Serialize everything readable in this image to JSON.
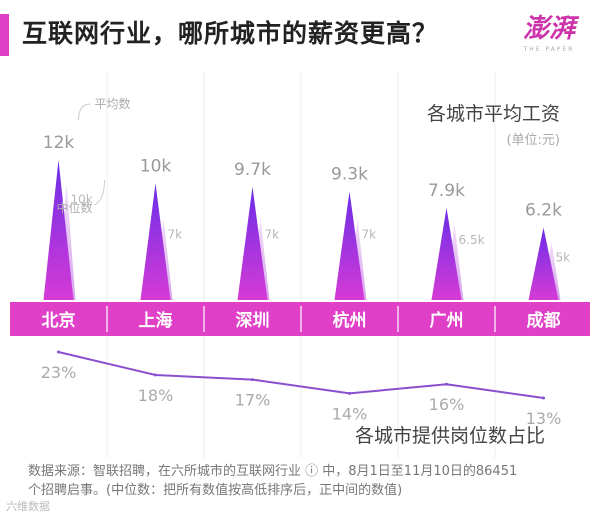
{
  "header": {
    "title": "互联网行业，哪所城市的薪资更高？",
    "logo_text": "澎湃",
    "logo_sub": "THE PAPER",
    "accent_color": "#e040c8"
  },
  "chart_data": [
    {
      "type": "bar",
      "subtype": "triangle-peaks",
      "title": "各城市平均工资",
      "unit_label": "(单位:元)",
      "categories": [
        "北京",
        "上海",
        "深圳",
        "杭州",
        "广州",
        "成都"
      ],
      "series": [
        {
          "name": "平均数",
          "values": [
            12000,
            10000,
            9700,
            9300,
            7900,
            6200
          ],
          "labels": [
            "12k",
            "10k",
            "9.7k",
            "9.3k",
            "7.9k",
            "6.2k"
          ]
        },
        {
          "name": "中位数",
          "values": [
            10000,
            7000,
            7000,
            7000,
            6500,
            5000
          ],
          "labels": [
            "10k",
            "7k",
            "7k",
            "7k",
            "6.5k",
            "5k"
          ]
        }
      ],
      "legend_callouts": [
        "平均数",
        "中位数"
      ],
      "ylim": [
        0,
        12000
      ],
      "colors": {
        "mean": "#9b2ee0",
        "median": "#dcb0f0",
        "band": "#e040c8",
        "band_text": "#ffffff"
      }
    },
    {
      "type": "line",
      "title": "各城市提供岗位数占比",
      "categories": [
        "北京",
        "上海",
        "深圳",
        "杭州",
        "广州",
        "成都"
      ],
      "values": [
        23,
        18,
        17,
        14,
        16,
        13
      ],
      "labels": [
        "23%",
        "18%",
        "17%",
        "14%",
        "16%",
        "13%"
      ],
      "unit": "%",
      "line_color": "#8a4fcf"
    }
  ],
  "footnote": {
    "line1": "数据来源：智联招聘，在六所城市的互联网行业 ⓘ 中，8月1日至11月10日的86451",
    "line2": "个招聘启事。(中位数：把所有数值按高低排序后，正中间的数值)"
  },
  "watermark": "六维数据"
}
